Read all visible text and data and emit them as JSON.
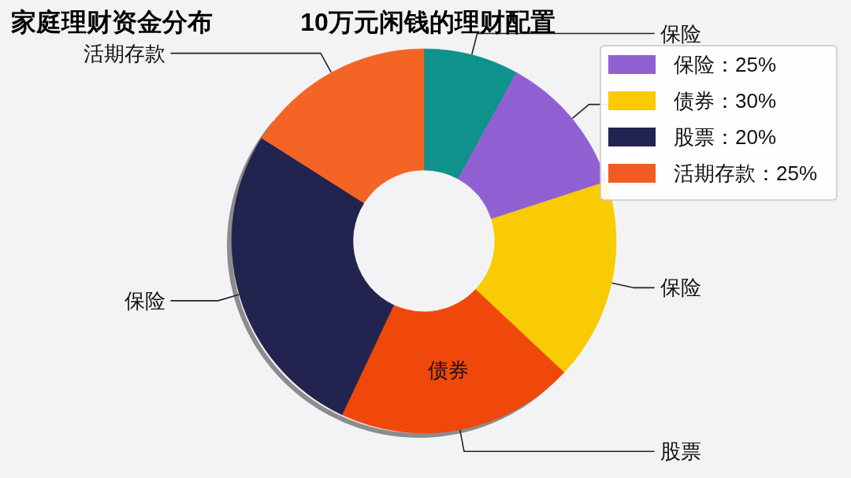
{
  "chart_data": [
    {
      "type": "donut",
      "title": "家庭理财资金分布",
      "subtitle": "10万元闲钱的理财配置",
      "categories": [
        "保险",
        null,
        "保险",
        "股票",
        "保险",
        "活期存款"
      ],
      "values": [
        8,
        12,
        17,
        20,
        27,
        16
      ],
      "colors": [
        "#0f918c",
        "#9060d3",
        "#f8cb04",
        "#f0470b",
        "#22234f",
        "#f46425"
      ],
      "annotations": [
        {
          "text": "债券",
          "x": "股票"
        }
      ]
    },
    {
      "type": "other",
      "categories": [
        "保险：25%",
        "债券：30%",
        "股票：20%",
        "活期存款：25%"
      ],
      "colors": [
        "#9060d3",
        "#f8cb04",
        "#22234f",
        "#f25b23"
      ]
    }
  ]
}
